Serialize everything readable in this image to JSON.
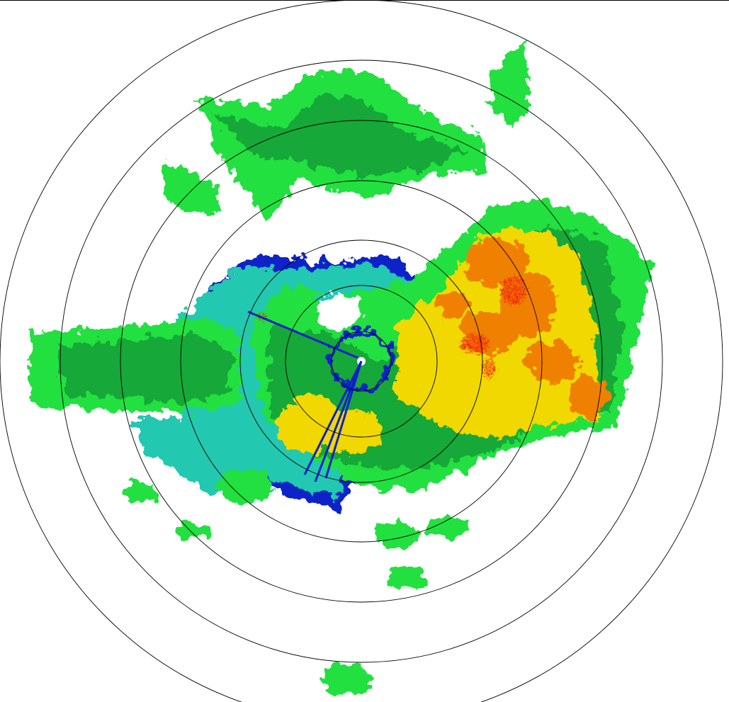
{
  "radar": {
    "range_rings": 7,
    "palette": {
      "weak_blue": "#1020c8",
      "cyan": "#20c8b0",
      "light_green": "#20e040",
      "green": "#18a838",
      "yellow": "#f0d800",
      "orange": "#f08000",
      "red": "#f01010"
    },
    "ring_color": "#000000",
    "background": "#ffffff"
  }
}
